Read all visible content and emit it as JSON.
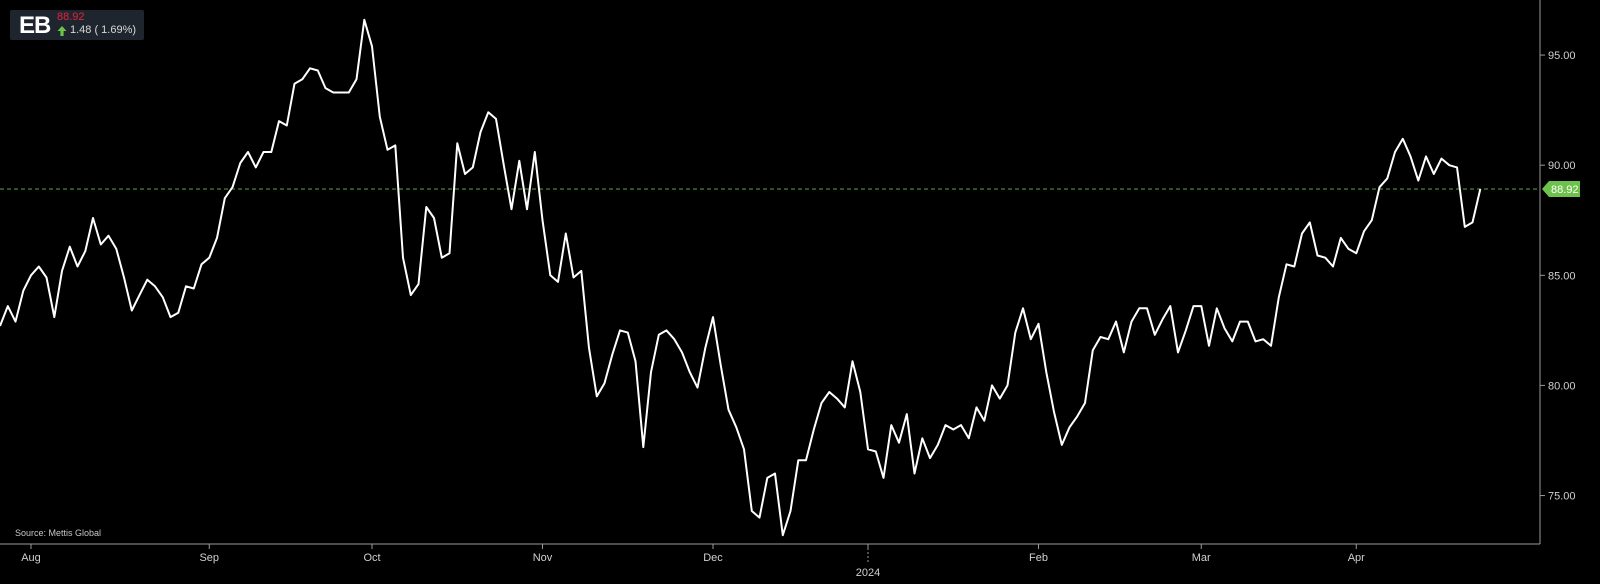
{
  "ticker": {
    "symbol": "EB",
    "price": "88.92",
    "change": "1.48 ( 1.69%)",
    "arrow_icon": "up-arrow-icon",
    "arrow_color": "#6cc24a",
    "price_color": "#e0243c"
  },
  "source": "Source: Mettis Global",
  "chart_data": {
    "type": "line",
    "line_color": "#ffffff",
    "last_price_line_color": "#6cc24a",
    "y_axis_position": "right",
    "ylim": [
      72.8,
      97.5
    ],
    "y_ticks": [
      {
        "value": 95,
        "label": "95.00"
      },
      {
        "value": 90,
        "label": "90.00"
      },
      {
        "value": 85,
        "label": "85.00"
      },
      {
        "value": 80,
        "label": "80.00"
      },
      {
        "value": 75,
        "label": "75.00"
      }
    ],
    "last_price": {
      "value": 88.92,
      "label": "88.92"
    },
    "x_ticks": [
      {
        "index": 4,
        "label": "Aug"
      },
      {
        "index": 27,
        "label": "Sep"
      },
      {
        "index": 48,
        "label": "Oct"
      },
      {
        "index": 70,
        "label": "Nov"
      },
      {
        "index": 92,
        "label": "Dec"
      },
      {
        "index": 112,
        "label": "",
        "year_label": "2024"
      },
      {
        "index": 134,
        "label": "Feb"
      },
      {
        "index": 155,
        "label": "Mar"
      },
      {
        "index": 175,
        "label": "Apr"
      }
    ],
    "values": [
      82.7,
      83.6,
      82.9,
      84.3,
      85.0,
      85.4,
      84.9,
      83.1,
      85.2,
      86.3,
      85.4,
      86.1,
      87.6,
      86.4,
      86.8,
      86.2,
      84.9,
      83.4,
      84.1,
      84.8,
      84.5,
      84.0,
      83.1,
      83.3,
      84.5,
      84.4,
      85.5,
      85.8,
      86.7,
      88.5,
      89.0,
      90.1,
      90.6,
      89.9,
      90.6,
      90.6,
      92.0,
      91.8,
      93.7,
      93.9,
      94.4,
      94.3,
      93.5,
      93.3,
      93.3,
      93.3,
      93.9,
      96.6,
      95.4,
      92.2,
      90.7,
      90.9,
      85.8,
      84.1,
      84.6,
      88.1,
      87.6,
      85.8,
      86.0,
      91.0,
      89.6,
      89.9,
      91.5,
      92.4,
      92.1,
      90.0,
      88.0,
      90.2,
      88.0,
      90.6,
      87.5,
      85.0,
      84.7,
      86.9,
      84.9,
      85.2,
      81.7,
      79.5,
      80.1,
      81.4,
      82.5,
      82.4,
      81.1,
      77.2,
      80.6,
      82.3,
      82.5,
      82.1,
      81.5,
      80.6,
      79.9,
      81.7,
      83.1,
      80.9,
      78.9,
      78.1,
      77.1,
      74.3,
      74.0,
      75.8,
      76.0,
      73.2,
      74.3,
      76.6,
      76.6,
      78.0,
      79.2,
      79.7,
      79.4,
      79.0,
      81.1,
      79.7,
      77.1,
      77.0,
      75.8,
      78.2,
      77.4,
      78.7,
      76.0,
      77.6,
      76.7,
      77.3,
      78.2,
      78.0,
      78.2,
      77.6,
      79.0,
      78.4,
      80.0,
      79.4,
      80.0,
      82.4,
      83.5,
      82.1,
      82.8,
      80.6,
      78.8,
      77.3,
      78.1,
      78.6,
      79.2,
      81.6,
      82.2,
      82.1,
      82.9,
      81.5,
      82.9,
      83.5,
      83.5,
      82.3,
      83.0,
      83.6,
      81.5,
      82.5,
      83.6,
      83.6,
      81.8,
      83.5,
      82.6,
      82.0,
      82.9,
      82.9,
      82.0,
      82.1,
      81.8,
      84.0,
      85.5,
      85.4,
      86.9,
      87.4,
      85.9,
      85.8,
      85.4,
      86.7,
      86.2,
      86.0,
      87.0,
      87.5,
      89.0,
      89.4,
      90.6,
      91.2,
      90.4,
      89.3,
      90.4,
      89.6,
      90.3,
      90.0,
      89.9,
      87.2,
      87.4,
      88.92
    ]
  }
}
